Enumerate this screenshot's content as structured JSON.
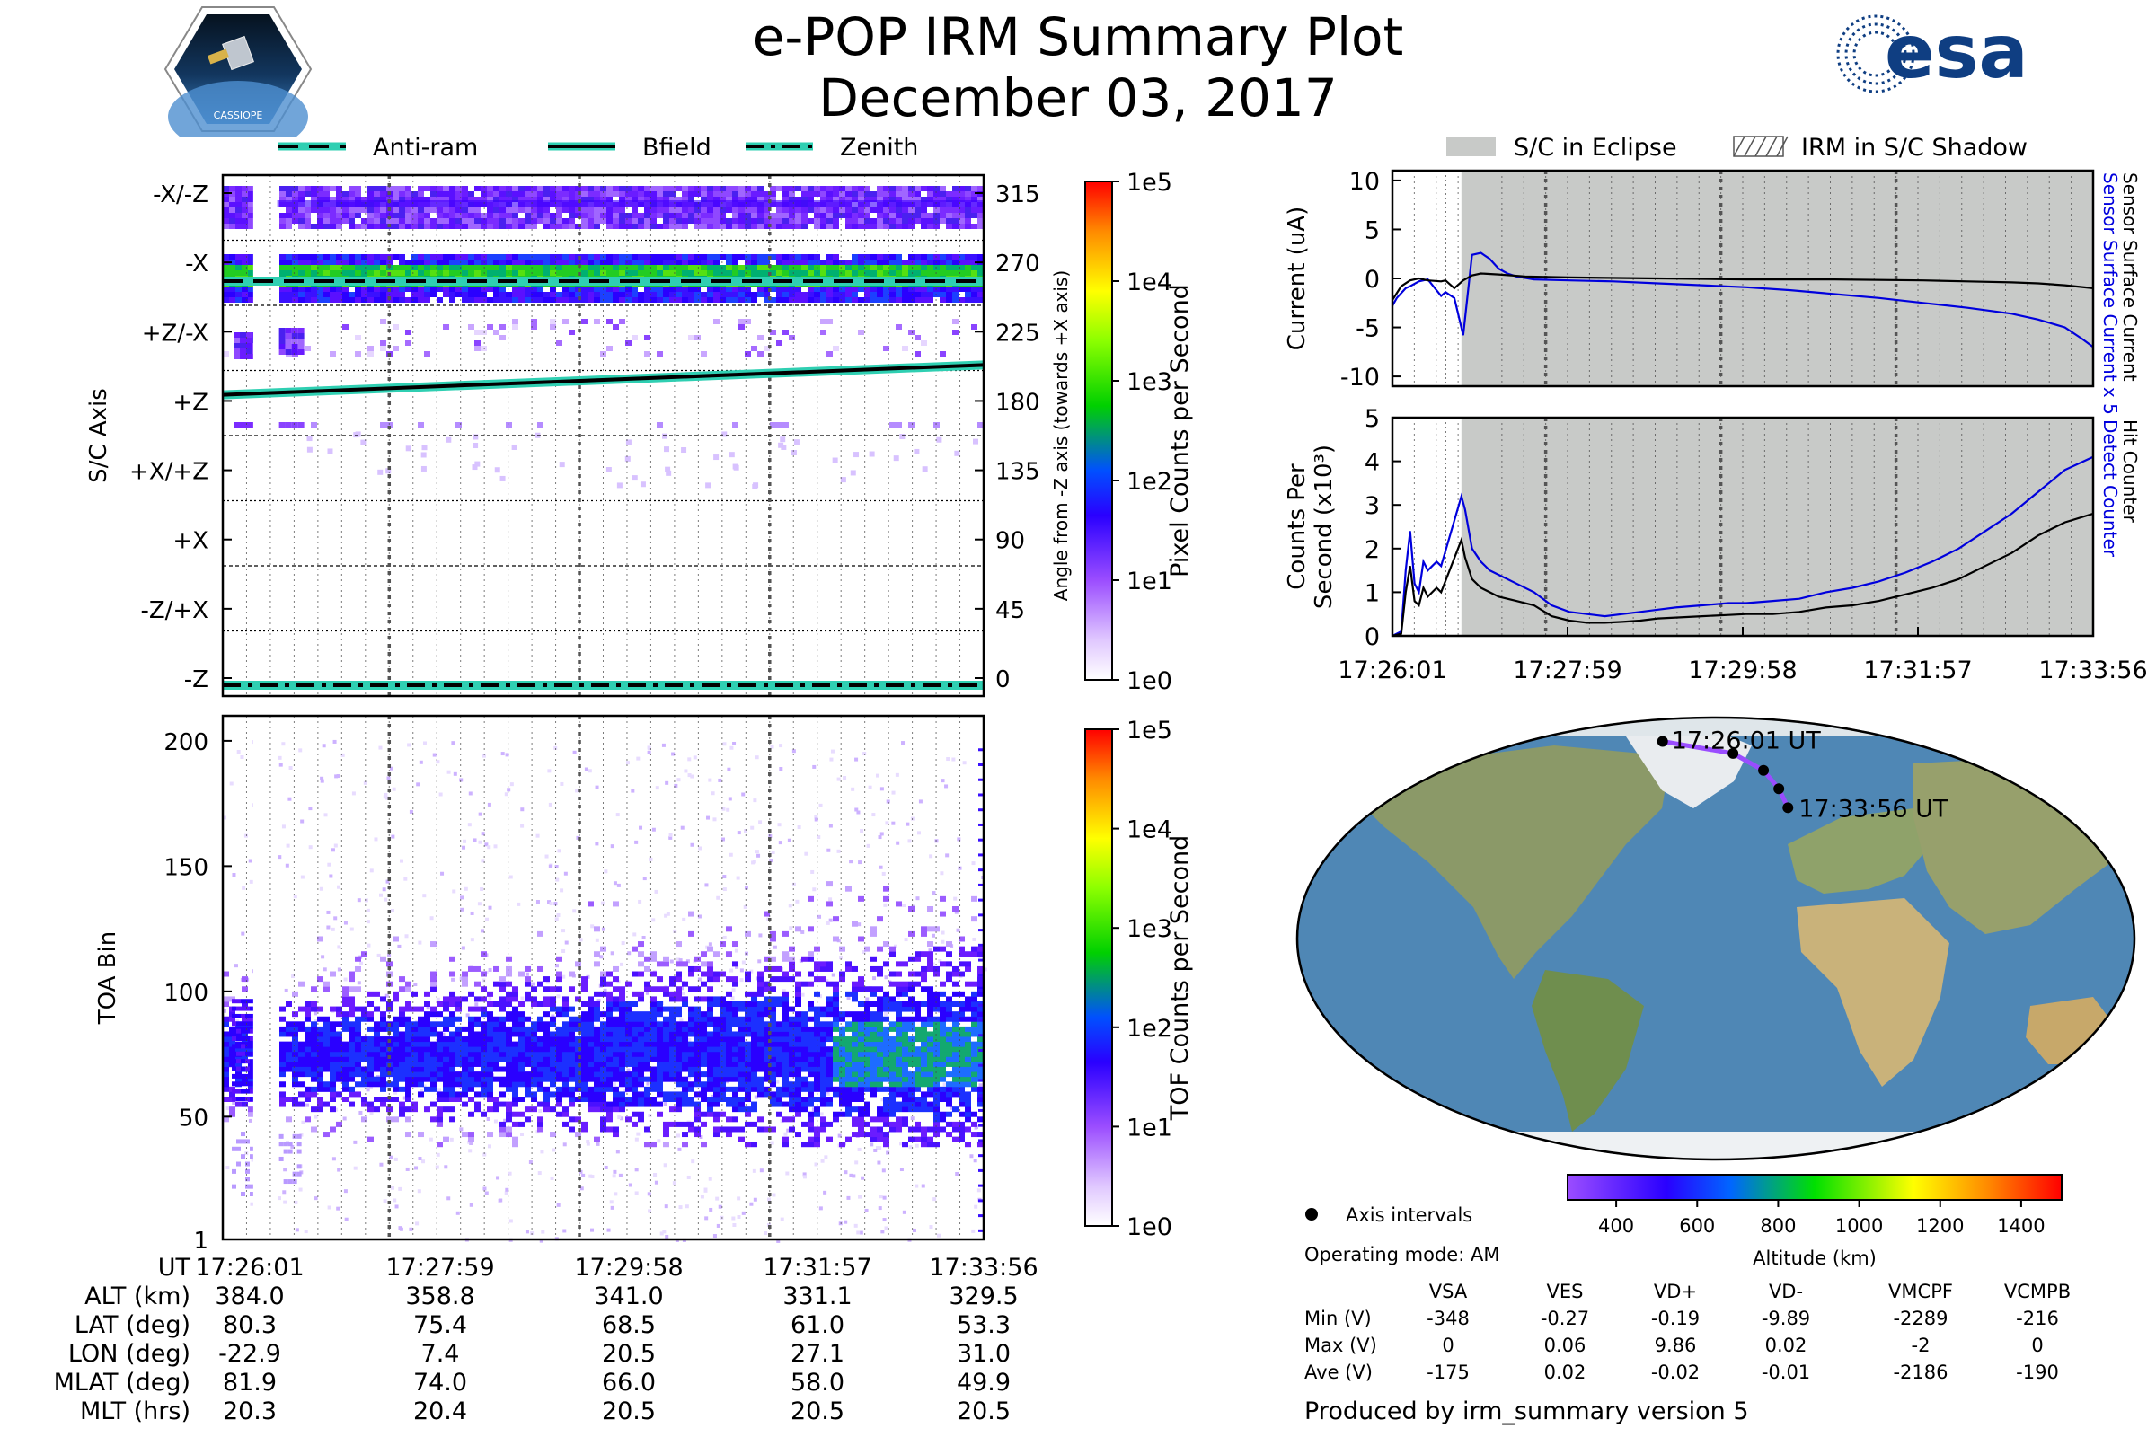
{
  "header": {
    "title": "e-POP IRM Summary Plot",
    "date": "December 03, 2017",
    "mission_logo_text": "CASSIOPE",
    "esa_logo_text": "esa"
  },
  "colors": {
    "antiram": "#2fcfb2",
    "bfield": "#2fcfb2",
    "zenith": "#2fcfb2",
    "eclipse": "#c8cac8",
    "sensor_current": "#0000dd",
    "detect_counter": "#0000dd",
    "black_series": "#000000",
    "track": "#9a4dff"
  },
  "top_legend": {
    "items": [
      {
        "label": "Anti-ram",
        "style": "dashed"
      },
      {
        "label": "Bfield",
        "style": "solid"
      },
      {
        "label": "Zenith",
        "style": "dashdot"
      }
    ]
  },
  "right_legend": {
    "items": [
      {
        "label": "S/C in Eclipse",
        "style": "filled"
      },
      {
        "label": "IRM in S/C Shadow",
        "style": "hatched"
      }
    ]
  },
  "chart_data": [
    {
      "id": "sc_axis_heatmap",
      "type": "heatmap",
      "ylabel": "S/C Axis",
      "y2label": "Angle from -Z axis (towards +X axis)",
      "y_categories": [
        "-X/-Z",
        "-X",
        "+Z/-X",
        "+Z",
        "+X/+Z",
        "+X",
        "-Z/+X",
        "-Z"
      ],
      "y2_ticks": [
        "315",
        "270",
        "225",
        "180",
        "135",
        "90",
        "45",
        "0"
      ],
      "x_ticks": [
        "17:26:01",
        "17:27:59",
        "17:29:58",
        "17:31:57",
        "17:33:56"
      ],
      "colorbar": {
        "label": "Pixel Counts per Second",
        "ticks": [
          "1e0",
          "1e1",
          "1e2",
          "1e3",
          "1e4",
          "1e5"
        ],
        "scale": "log"
      },
      "lines": [
        {
          "name": "Anti-ram",
          "angle_start": 270,
          "angle_end": 270
        },
        {
          "name": "Bfield",
          "angle_start": 194,
          "angle_end": 214
        },
        {
          "name": "Zenith",
          "angle_start": 0,
          "angle_end": 0
        }
      ],
      "data_gaps": [
        [
          "17:26:20",
          "17:26:35"
        ]
      ]
    },
    {
      "id": "toa_heatmap",
      "type": "heatmap",
      "ylabel": "TOA Bin",
      "y_ticks": [
        "1",
        "50",
        "100",
        "150",
        "200"
      ],
      "ylim": [
        1,
        210
      ],
      "x_ticks": [
        "17:26:01",
        "17:27:59",
        "17:29:58",
        "17:31:57",
        "17:33:56"
      ],
      "colorbar": {
        "label": "TOF Counts per Second",
        "ticks": [
          "1e0",
          "1e1",
          "1e2",
          "1e3",
          "1e4",
          "1e5"
        ],
        "scale": "log"
      },
      "core_band": [
        60,
        90
      ]
    },
    {
      "id": "sensor_current",
      "type": "line",
      "ylabel": "Current (uA)",
      "y2labels": [
        "Sensor Surface Current x 5",
        "Sensor Surface Current"
      ],
      "y_ticks": [
        "10",
        "5",
        "0",
        "-5",
        "-10"
      ],
      "ylim": [
        -11,
        11
      ],
      "xlim_minutes": [
        0,
        7.92
      ],
      "eclipse_start_min": 0.78,
      "series": [
        {
          "name": "Sensor Surface Current x 5",
          "x": [
            0,
            0.05,
            0.1,
            0.15,
            0.2,
            0.3,
            0.4,
            0.55,
            0.6,
            0.7,
            0.8,
            0.9,
            1.0,
            1.1,
            1.2,
            1.3,
            1.4,
            1.6,
            2.0,
            2.5,
            3.0,
            3.5,
            4.0,
            4.5,
            5.0,
            5.5,
            6.0,
            6.5,
            7.0,
            7.3,
            7.6,
            7.8,
            7.92
          ],
          "values": [
            -2.8,
            -2.0,
            -1.5,
            -1.0,
            -0.8,
            -0.3,
            -0.1,
            -1.8,
            -1.4,
            -2.0,
            -5.8,
            2.4,
            2.6,
            2.0,
            1.0,
            0.5,
            0.2,
            -0.1,
            -0.2,
            -0.3,
            -0.5,
            -0.7,
            -0.9,
            -1.2,
            -1.6,
            -2.0,
            -2.5,
            -3.0,
            -3.6,
            -4.2,
            -5.0,
            -6.2,
            -7.0
          ]
        },
        {
          "name": "Sensor Surface Current",
          "x": [
            0,
            0.05,
            0.1,
            0.2,
            0.3,
            0.4,
            0.55,
            0.6,
            0.7,
            0.8,
            0.9,
            1.0,
            1.2,
            1.5,
            2.0,
            3.0,
            4.0,
            5.0,
            6.0,
            6.5,
            7.0,
            7.3,
            7.6,
            7.92
          ],
          "values": [
            -2.2,
            -1.5,
            -0.8,
            -0.2,
            0.0,
            -0.2,
            -0.3,
            -0.2,
            -1.0,
            -0.2,
            0.3,
            0.5,
            0.4,
            0.2,
            0.1,
            0.0,
            -0.1,
            -0.1,
            -0.2,
            -0.3,
            -0.4,
            -0.5,
            -0.7,
            -1.0
          ]
        }
      ]
    },
    {
      "id": "counts",
      "type": "line",
      "ylabel": "Counts Per Second (x10^3)",
      "y2labels": [
        "Detect Counter",
        "Hit Counter"
      ],
      "y_ticks": [
        "5",
        "4",
        "3",
        "2",
        "1",
        "0"
      ],
      "ylim": [
        0,
        5
      ],
      "x_ticks": [
        "17:26:01",
        "17:27:59",
        "17:29:58",
        "17:31:57",
        "17:33:56"
      ],
      "xlim_minutes": [
        0,
        7.92
      ],
      "eclipse_start_min": 0.78,
      "series": [
        {
          "name": "Detect Counter",
          "x": [
            0,
            0.1,
            0.15,
            0.2,
            0.25,
            0.3,
            0.35,
            0.4,
            0.45,
            0.5,
            0.55,
            0.78,
            0.82,
            0.9,
            1.0,
            1.1,
            1.2,
            1.4,
            1.6,
            1.8,
            2.0,
            2.2,
            2.4,
            2.6,
            2.8,
            3.0,
            3.2,
            3.5,
            3.8,
            4.0,
            4.3,
            4.6,
            4.9,
            5.2,
            5.5,
            5.8,
            6.1,
            6.4,
            6.7,
            7.0,
            7.3,
            7.6,
            7.92
          ],
          "values": [
            0,
            0.1,
            1.5,
            2.4,
            1.2,
            1.0,
            1.7,
            1.5,
            1.6,
            1.7,
            1.6,
            3.2,
            2.9,
            2.0,
            1.7,
            1.5,
            1.4,
            1.2,
            1.0,
            0.7,
            0.55,
            0.5,
            0.45,
            0.5,
            0.55,
            0.6,
            0.65,
            0.7,
            0.75,
            0.75,
            0.8,
            0.85,
            1.0,
            1.1,
            1.25,
            1.45,
            1.7,
            2.0,
            2.4,
            2.8,
            3.3,
            3.8,
            4.1
          ]
        },
        {
          "name": "Hit Counter",
          "x": [
            0,
            0.1,
            0.15,
            0.2,
            0.25,
            0.3,
            0.35,
            0.4,
            0.45,
            0.5,
            0.55,
            0.78,
            0.82,
            0.9,
            1.0,
            1.1,
            1.2,
            1.4,
            1.6,
            1.8,
            2.0,
            2.2,
            2.4,
            2.6,
            2.8,
            3.0,
            3.2,
            3.5,
            3.8,
            4.0,
            4.3,
            4.6,
            4.9,
            5.2,
            5.5,
            5.8,
            6.1,
            6.4,
            6.7,
            7.0,
            7.3,
            7.6,
            7.92
          ],
          "values": [
            0,
            0.05,
            1.0,
            1.6,
            0.8,
            0.7,
            1.1,
            0.9,
            1.0,
            1.1,
            1.0,
            2.2,
            1.8,
            1.3,
            1.1,
            1.0,
            0.9,
            0.8,
            0.7,
            0.45,
            0.35,
            0.3,
            0.3,
            0.32,
            0.35,
            0.4,
            0.42,
            0.45,
            0.48,
            0.5,
            0.5,
            0.55,
            0.65,
            0.7,
            0.8,
            0.95,
            1.1,
            1.3,
            1.6,
            1.9,
            2.3,
            2.6,
            2.8
          ]
        }
      ]
    },
    {
      "id": "altitude_colorbar",
      "type": "heatmap",
      "xlabel": "Altitude (km)",
      "x_ticks": [
        "400",
        "600",
        "800",
        "1000",
        "1200",
        "1400"
      ],
      "xlim": [
        280,
        1500
      ]
    }
  ],
  "map": {
    "start_label": "17:26:01 UT",
    "end_label": "17:33:56 UT",
    "track": [
      [
        -22.9,
        80.3
      ],
      [
        7.4,
        75.4
      ],
      [
        20.5,
        68.5
      ],
      [
        27.1,
        61.0
      ],
      [
        31.0,
        53.3
      ]
    ],
    "axis_intervals_label": "Axis intervals",
    "operating_mode": "Operating mode: AM"
  },
  "ephemeris": {
    "labels": [
      "UT",
      "ALT (km)",
      "LAT (deg)",
      "LON (deg)",
      "MLAT (deg)",
      "MLT (hrs)"
    ],
    "columns": [
      [
        "17:26:01",
        "384.0",
        "80.3",
        "-22.9",
        "81.9",
        "20.3"
      ],
      [
        "17:27:59",
        "358.8",
        "75.4",
        "7.4",
        "74.0",
        "20.4"
      ],
      [
        "17:29:58",
        "341.0",
        "68.5",
        "20.5",
        "66.0",
        "20.5"
      ],
      [
        "17:31:57",
        "331.1",
        "61.0",
        "27.1",
        "58.0",
        "20.5"
      ],
      [
        "17:33:56",
        "329.5",
        "53.3",
        "31.0",
        "49.9",
        "20.5"
      ]
    ]
  },
  "voltage_table": {
    "headers": [
      "VSA",
      "VES",
      "VD+",
      "VD-",
      "VMCPF",
      "VCMPB"
    ],
    "rows": [
      {
        "label": "Min (V)",
        "values": [
          "-348",
          "-0.27",
          "-0.19",
          "-9.89",
          "-2289",
          "-216"
        ]
      },
      {
        "label": "Max (V)",
        "values": [
          "0",
          "0.06",
          "9.86",
          "0.02",
          "-2",
          "0"
        ]
      },
      {
        "label": "Ave (V)",
        "values": [
          "-175",
          "0.02",
          "-0.02",
          "-0.01",
          "-2186",
          "-190"
        ]
      }
    ]
  },
  "footer": "Produced by irm_summary version 5"
}
